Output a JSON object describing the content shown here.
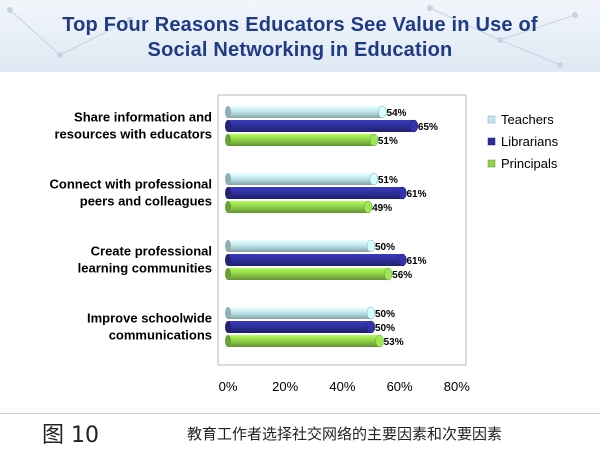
{
  "title_lines": [
    "Top Four Reasons Educators See Value in Use of",
    "Social Networking in Education"
  ],
  "figure": {
    "label": "图 10",
    "caption": "教育工作者选择社交网络的主要因素和次要因素"
  },
  "chart_data": {
    "type": "bar",
    "orientation": "horizontal",
    "categories": [
      [
        "Share information and",
        "resources with educators"
      ],
      [
        "Connect with professional",
        "peers and colleagues"
      ],
      [
        "Create professional",
        "learning communities"
      ],
      [
        "Improve schoolwide",
        "communications"
      ]
    ],
    "series": [
      {
        "name": "Teachers",
        "color": "#bfe9ee",
        "values": [
          54,
          51,
          50,
          50
        ]
      },
      {
        "name": "Librarians",
        "color": "#2e2f9c",
        "values": [
          65,
          61,
          61,
          50
        ]
      },
      {
        "name": "Principals",
        "color": "#8fd44a",
        "values": [
          51,
          49,
          56,
          53
        ]
      }
    ],
    "value_format": "%",
    "xlim": [
      0,
      80
    ],
    "xticks": [
      "0%",
      "20%",
      "40%",
      "60%",
      "80%"
    ],
    "grid": false,
    "legend_position": "right"
  }
}
